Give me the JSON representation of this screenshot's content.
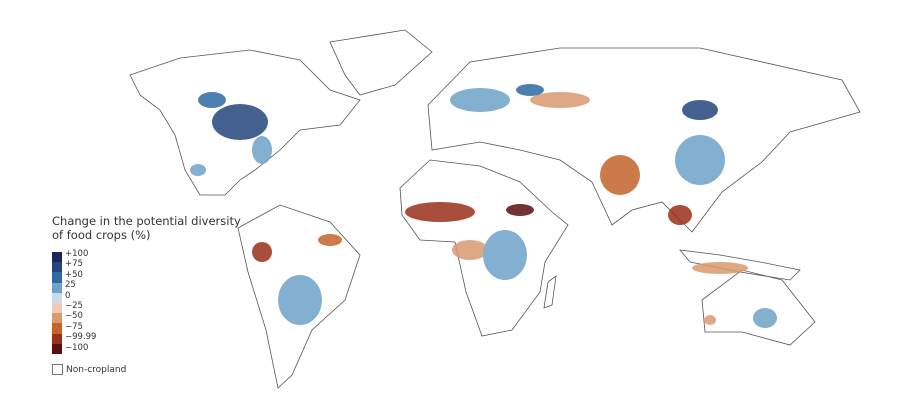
{
  "legend": {
    "title": "Change in the potential diversity of food crops (%)",
    "labels": [
      "+100",
      "+75",
      "+50",
      "25",
      "0",
      "−25",
      "−50",
      "−75",
      "−99.99",
      "−100"
    ],
    "colors": [
      "#1b2658",
      "#23457d",
      "#2d69a2",
      "#6ea2c8",
      "#c9dcea",
      "#efcbb5",
      "#d99a70",
      "#c4632c",
      "#993019",
      "#5a0f10"
    ],
    "non_cropland": "Non-cropland"
  }
}
